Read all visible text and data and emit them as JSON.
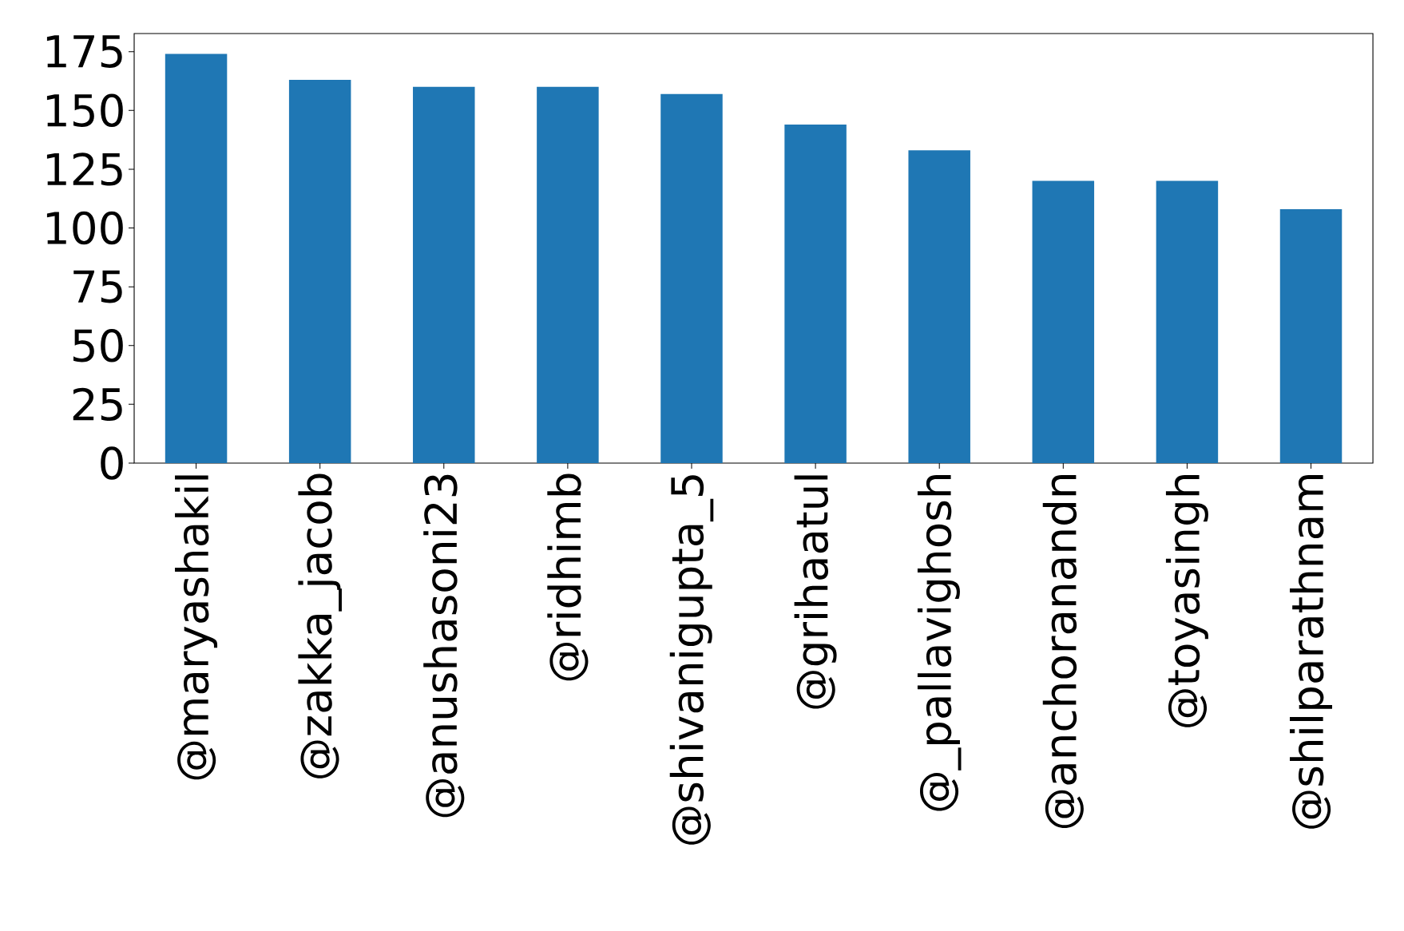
{
  "chart_data": {
    "type": "bar",
    "categories": [
      "@maryashakil",
      "@zakka_jacob",
      "@anushasoni23",
      "@ridhimb",
      "@shivanigupta_5",
      "@grihaatul",
      "@_pallavighosh",
      "@anchoranandn",
      "@toyasingh",
      "@shilparathnam"
    ],
    "values": [
      174,
      163,
      160,
      160,
      157,
      144,
      133,
      120,
      120,
      108
    ],
    "color": "#1f77b4",
    "ylim": [
      0,
      182.7
    ],
    "yticks": [
      0,
      25,
      50,
      75,
      100,
      125,
      150,
      175
    ]
  }
}
